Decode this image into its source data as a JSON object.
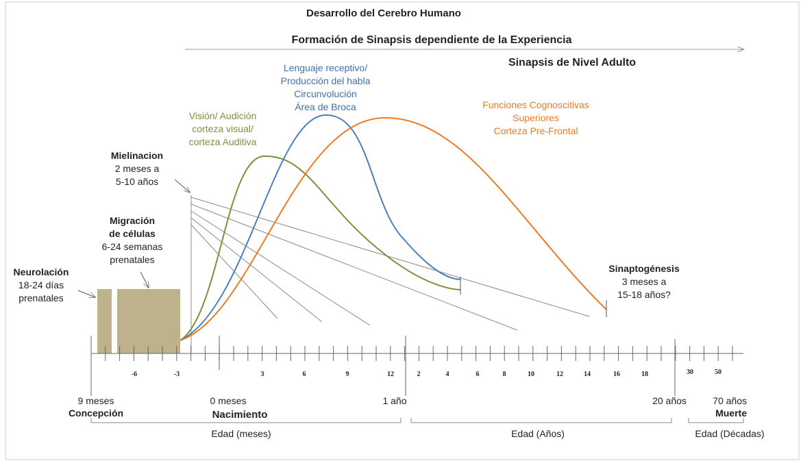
{
  "title": "Desarrollo del Cerebro Humano",
  "subtitle": "Formación de Sinapsis dependiente de la Experiencia",
  "adult_level": "Sinapsis de Nivel Adulto",
  "labels": {
    "language": [
      "Lenguaje receptivo/",
      "Producción del habla",
      "Circunvolución",
      "Área de Broca"
    ],
    "vision": [
      "Visión/ Audición",
      "corteza visual/",
      "corteza Auditiva"
    ],
    "cognitive": [
      "Funciones Cognoscitivas",
      "Superiores",
      "Corteza  Pre-Frontal"
    ],
    "myelination": {
      "title": "Mielinacion",
      "lines": [
        "2 meses a",
        "5-10 años"
      ]
    },
    "migration": {
      "title": [
        "Migración",
        "de células"
      ],
      "lines": [
        "6-24 semanas",
        "prenatales"
      ]
    },
    "neurulation": {
      "title": "Neurolación",
      "lines": [
        "18-24 días",
        "prenatales"
      ]
    },
    "synaptogenesis": {
      "title": "Sinaptogénesis",
      "lines": [
        "3 meses a",
        "15-18 años?"
      ]
    }
  },
  "axis": {
    "prenatal_ticks": [
      "-6",
      "-3"
    ],
    "month_ticks": [
      "3",
      "6",
      "9",
      "12"
    ],
    "year_ticks": [
      "2",
      "4",
      "6",
      "8",
      "10",
      "12",
      "14",
      "16",
      "18"
    ],
    "decade_ticks": [
      "30",
      "50"
    ],
    "markers": [
      {
        "label": "9 meses",
        "event": "Concepción"
      },
      {
        "label": "0 meses",
        "event": "Nacimiento"
      },
      {
        "label": "1 año"
      },
      {
        "label": "20 años"
      },
      {
        "label": "70 años",
        "event": "Muerte"
      }
    ],
    "ranges": [
      "Edad (meses)",
      "Edad (Años)",
      "Edad (Décadas)"
    ]
  }
}
